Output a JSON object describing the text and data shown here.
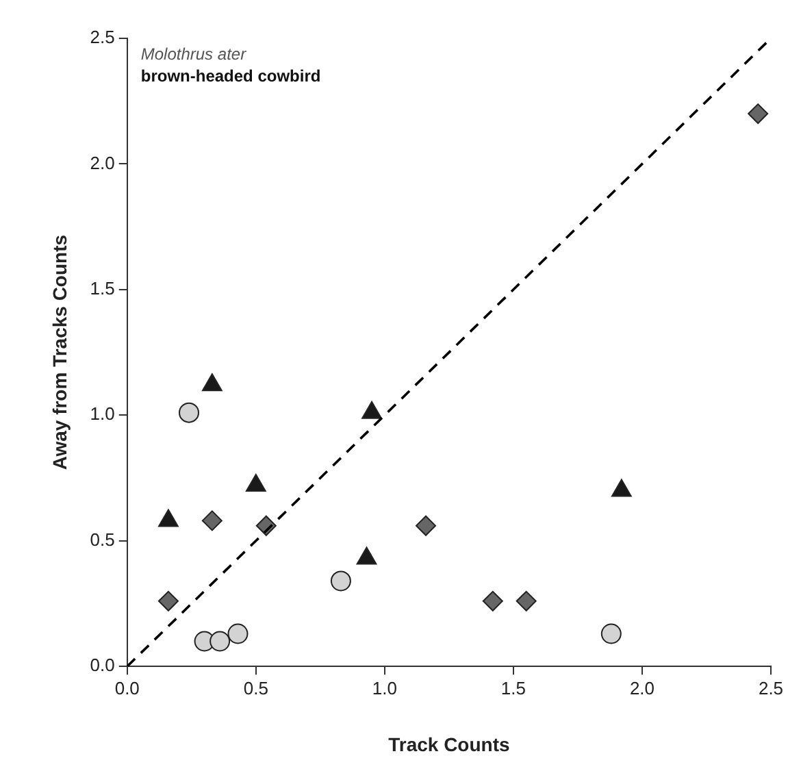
{
  "chart_data": {
    "type": "scatter",
    "xlabel": "Track Counts",
    "ylabel": "Away from Tracks Counts",
    "annotations": [
      "Molothrus ater",
      "brown-headed cowbird"
    ],
    "xlim": [
      0,
      2.5
    ],
    "ylim": [
      0,
      2.5
    ],
    "xticks": [
      {
        "value": 0,
        "label": "0.0"
      },
      {
        "value": 0.5,
        "label": "0.5"
      },
      {
        "value": 1,
        "label": "1.0"
      },
      {
        "value": 1.5,
        "label": "1.5"
      },
      {
        "value": 2,
        "label": "2.0"
      },
      {
        "value": 2.5,
        "label": "2.5"
      }
    ],
    "yticks": [
      {
        "value": 0,
        "label": "0.0"
      },
      {
        "value": 0.5,
        "label": "0.5"
      },
      {
        "value": 1,
        "label": "1.0"
      },
      {
        "value": 1.5,
        "label": "1.5"
      },
      {
        "value": 2,
        "label": "2.0"
      },
      {
        "value": 2.5,
        "label": "2.5"
      }
    ],
    "grid": false,
    "legend": false,
    "series": [
      {
        "type": "line",
        "color": "#000000",
        "line_style": "dashed",
        "marker": "none",
        "x": [
          0,
          2.5
        ],
        "values": [
          0,
          2.5
        ]
      },
      {
        "color": "#d3d3d3",
        "marker": "circle",
        "x": [
          0.24,
          0.3,
          0.36,
          0.43,
          0.83,
          1.88
        ],
        "values": [
          1.01,
          0.1,
          0.1,
          0.13,
          0.34,
          0.13
        ]
      },
      {
        "color": "#1a1a1a",
        "marker": "triangle",
        "x": [
          0.33,
          0.16,
          0.5,
          0.95,
          0.93,
          1.92
        ],
        "values": [
          1.12,
          0.58,
          0.72,
          1.01,
          0.43,
          0.7
        ]
      },
      {
        "color": "#666666",
        "marker": "diamond",
        "x": [
          0.16,
          0.33,
          0.54,
          1.16,
          1.42,
          1.55,
          2.45
        ],
        "values": [
          0.26,
          0.58,
          0.56,
          0.56,
          0.26,
          0.26,
          2.2
        ]
      }
    ]
  }
}
